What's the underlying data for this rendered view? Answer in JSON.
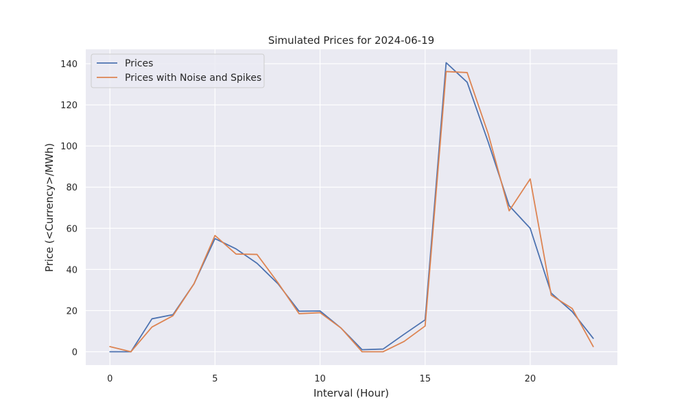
{
  "chart_data": {
    "type": "line",
    "title": "Simulated Prices for 2024-06-19",
    "xlabel": "Interval (Hour)",
    "ylabel": "Price (<Currency>/MWh)",
    "xlim": [
      -1.15,
      24.15
    ],
    "ylim": [
      -6.5,
      147
    ],
    "x_ticks": [
      0,
      5,
      10,
      15,
      20
    ],
    "y_ticks": [
      0,
      20,
      40,
      60,
      80,
      100,
      120,
      140
    ],
    "grid": true,
    "legend_position": "top-left",
    "x": [
      0,
      1,
      2,
      3,
      4,
      5,
      6,
      7,
      8,
      9,
      10,
      11,
      12,
      13,
      14,
      15,
      16,
      17,
      18,
      19,
      20,
      21,
      22,
      23
    ],
    "series": [
      {
        "name": "Prices",
        "color": "#4c72b0",
        "values": [
          0,
          0,
          16,
          18,
          33,
          55,
          50,
          43,
          33,
          19.7,
          19.8,
          11.5,
          1,
          1.3,
          8.5,
          15.5,
          140.5,
          131,
          102,
          71,
          60,
          28.5,
          19.5,
          6.5
        ]
      },
      {
        "name": "Prices with Noise and Spikes",
        "color": "#dd8452",
        "values": [
          2.5,
          0,
          12,
          17.5,
          33,
          56.5,
          47.5,
          47.3,
          33.5,
          18.5,
          19,
          11.5,
          0,
          0,
          5,
          12.5,
          136.2,
          135.7,
          106,
          68.5,
          84,
          27.5,
          21,
          2.5
        ]
      }
    ]
  }
}
